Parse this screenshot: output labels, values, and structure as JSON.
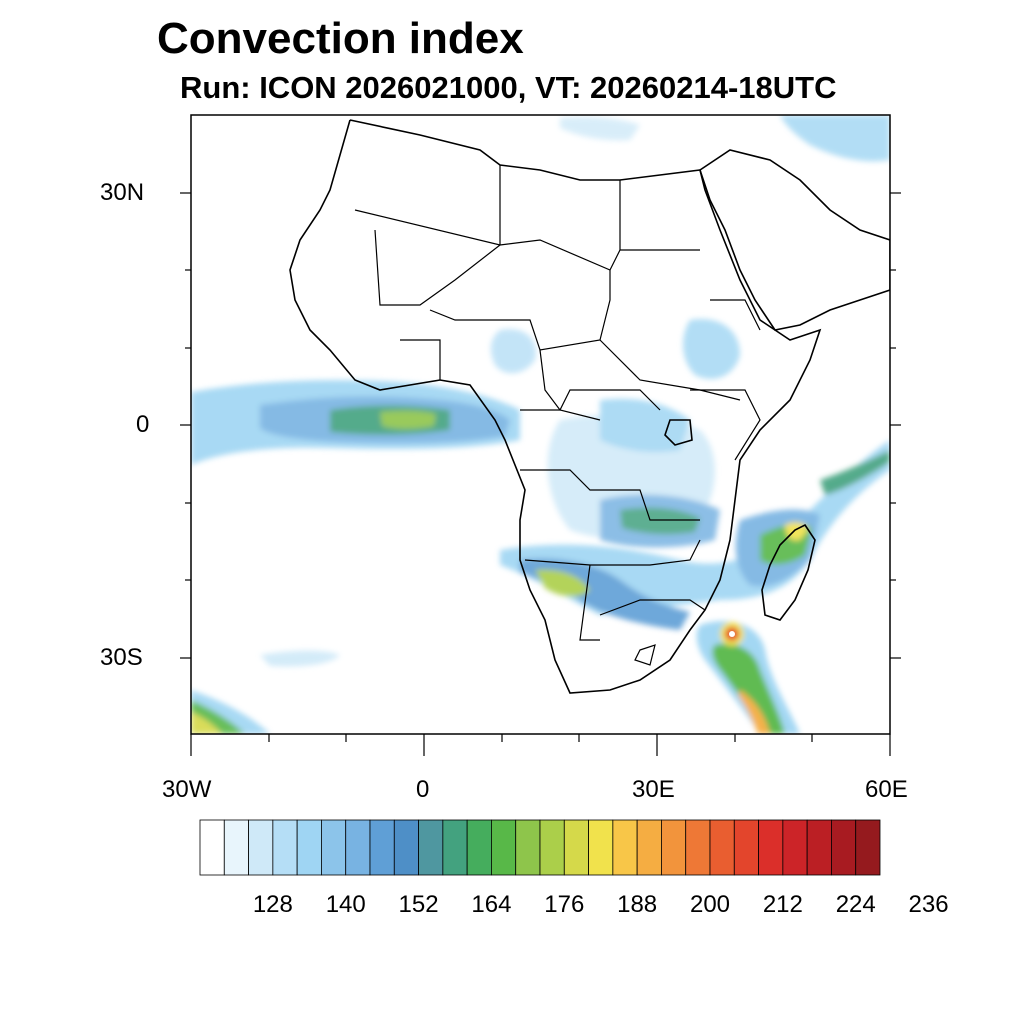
{
  "title": "Convection index",
  "subtitle": "Run: ICON 2026021000,  VT: 20260214-18UTC",
  "lat_labels": [
    "30N",
    "0",
    "30S"
  ],
  "lon_labels": [
    "30W",
    "0",
    "30E",
    "60E"
  ],
  "colorbar": {
    "ticks": [
      "128",
      "140",
      "152",
      "164",
      "176",
      "188",
      "200",
      "212",
      "224",
      "236"
    ],
    "colors": [
      "#ffffff",
      "#e8f5fc",
      "#cfe9f8",
      "#b5def6",
      "#9fd5f3",
      "#8cc4ea",
      "#78b3e2",
      "#5f9fd6",
      "#4e8fc7",
      "#4f97a0",
      "#43a27f",
      "#45ad5d",
      "#58b848",
      "#8ec54b",
      "#abcf4a",
      "#d5d94a",
      "#f1e24c",
      "#f8c648",
      "#f5ad42",
      "#f2943c",
      "#ee7836",
      "#e95e30",
      "#e3452c",
      "#db2f2a",
      "#cc2428",
      "#bb1f24",
      "#a81b21",
      "#951a1e"
    ]
  },
  "map": {
    "region": "Africa",
    "lon_range": [
      -30,
      60
    ],
    "lat_range": [
      -40,
      40
    ]
  }
}
